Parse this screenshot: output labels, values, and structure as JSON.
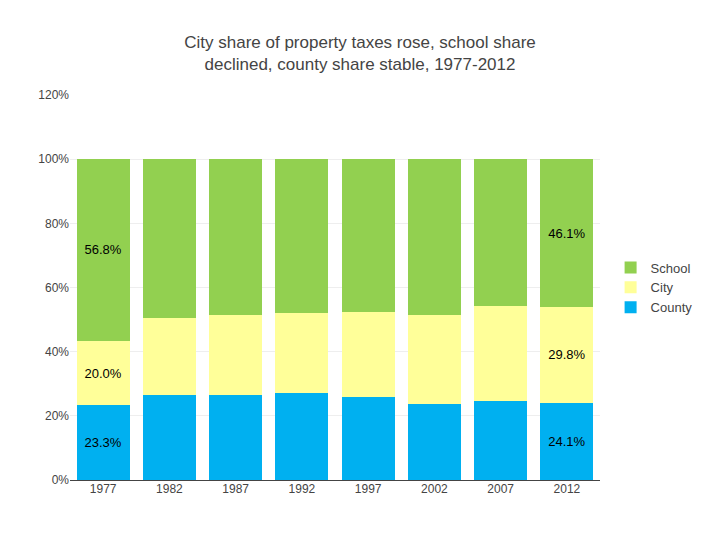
{
  "chart_data": {
    "type": "bar",
    "stacked": true,
    "title": "City share of property taxes rose, school share\ndeclined, county share stable, 1977-2012",
    "categories": [
      "1977",
      "1982",
      "1987",
      "1992",
      "1997",
      "2002",
      "2007",
      "2012"
    ],
    "series": [
      {
        "name": "County",
        "color": "#00b0f0",
        "values": [
          23.3,
          26.5,
          26.5,
          27.0,
          25.8,
          23.8,
          24.5,
          24.1
        ],
        "value_labels": [
          "23.3%",
          null,
          null,
          null,
          null,
          null,
          null,
          "24.1%"
        ]
      },
      {
        "name": "City",
        "color": "#ffff99",
        "values": [
          20.0,
          24.0,
          25.0,
          25.0,
          26.5,
          27.5,
          29.8,
          29.8
        ],
        "value_labels": [
          "20.0%",
          null,
          null,
          null,
          null,
          null,
          null,
          "29.8%"
        ]
      },
      {
        "name": "School",
        "color": "#92d050",
        "values": [
          56.8,
          49.5,
          48.5,
          48.0,
          47.7,
          48.7,
          45.7,
          46.1
        ],
        "value_labels": [
          "56.8%",
          null,
          null,
          null,
          null,
          null,
          null,
          "46.1%"
        ]
      }
    ],
    "ylim": [
      0,
      120
    ],
    "yticks": [
      {
        "value": 0,
        "label": "0%"
      },
      {
        "value": 20,
        "label": "20%"
      },
      {
        "value": 40,
        "label": "40%"
      },
      {
        "value": 60,
        "label": "60%"
      },
      {
        "value": 80,
        "label": "80%"
      },
      {
        "value": 100,
        "label": "100%"
      },
      {
        "value": 120,
        "label": "120%"
      }
    ],
    "grid": true,
    "legend": "right"
  }
}
